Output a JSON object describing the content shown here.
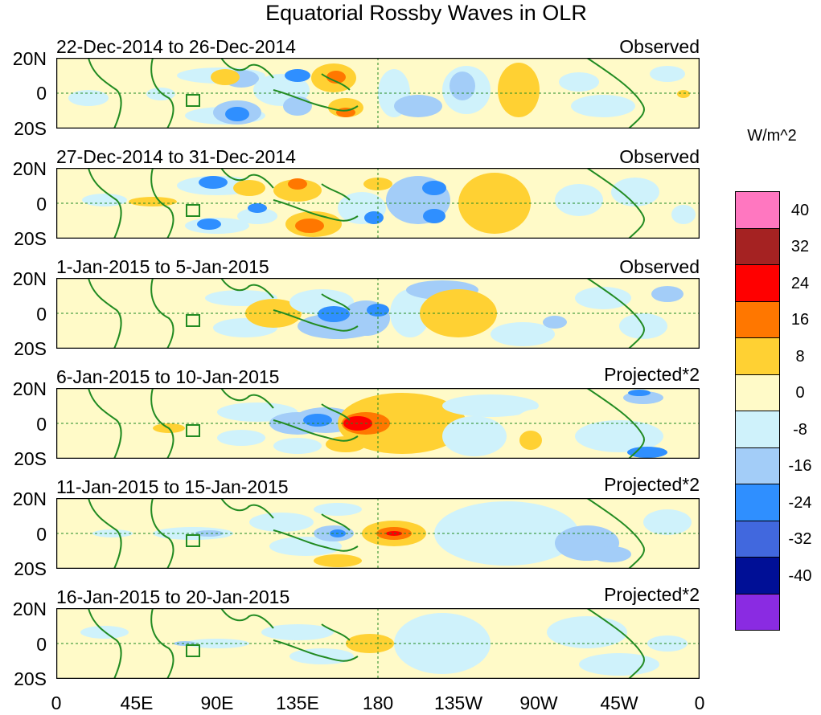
{
  "title": "Equatorial Rossby Waves in OLR",
  "lat_labels": [
    "20N",
    "0",
    "20S"
  ],
  "lon_labels": [
    "0",
    "45E",
    "90E",
    "135E",
    "180",
    "135W",
    "90W",
    "45W",
    "0"
  ],
  "colorbar": {
    "units": "W/m^2",
    "levels": [
      "40",
      "32",
      "24",
      "16",
      "8",
      "0",
      "-8",
      "-16",
      "-24",
      "-32",
      "-40"
    ],
    "colors": [
      "#ff77c0",
      "#a52222",
      "#ff0000",
      "#ff7700",
      "#ffd133",
      "#fffac8",
      "#cff2fb",
      "#a3cdf8",
      "#2f8fff",
      "#4168de",
      "#000f96",
      "#8a2be2"
    ]
  },
  "colors": {
    "coast": "#228b22",
    "guide": "#228b22",
    "background": "#ffffff",
    "frame": "#000000"
  },
  "panels": [
    {
      "date_label": "22-Dec-2014 to 26-Dec-2014",
      "type_label": "Observed"
    },
    {
      "date_label": "27-Dec-2014 to 31-Dec-2014",
      "type_label": "Observed"
    },
    {
      "date_label": "1-Jan-2015 to 5-Jan-2015",
      "type_label": "Observed"
    },
    {
      "date_label": "6-Jan-2015 to 10-Jan-2015",
      "type_label": "Projected*2"
    },
    {
      "date_label": "11-Jan-2015 to 15-Jan-2015",
      "type_label": "Projected*2"
    },
    {
      "date_label": "16-Jan-2015 to 20-Jan-2015",
      "type_label": "Projected*2"
    }
  ]
}
